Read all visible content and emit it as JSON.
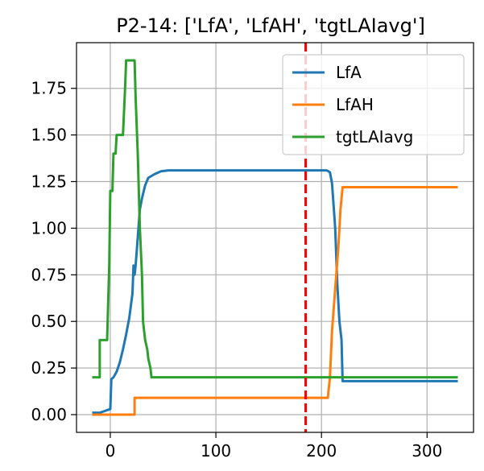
{
  "chart_data": {
    "type": "line",
    "title": "P2-14: ['LfA', 'LfAH', 'tgtLAIavg']",
    "xlabel": "",
    "ylabel": "",
    "xlim": [
      -32,
      344
    ],
    "ylim": [
      -0.095,
      1.995
    ],
    "xticks": [
      0,
      100,
      200,
      300
    ],
    "xtick_labels": [
      "0",
      "100",
      "200",
      "300"
    ],
    "yticks": [
      0.0,
      0.25,
      0.5,
      0.75,
      1.0,
      1.25,
      1.5,
      1.75
    ],
    "ytick_labels": [
      "0.00",
      "0.25",
      "0.50",
      "0.75",
      "1.00",
      "1.25",
      "1.50",
      "1.75"
    ],
    "grid": true,
    "legend_position": "top-right",
    "vline": {
      "x": 185,
      "color": "#ff0000",
      "style": "dashed"
    },
    "series": [
      {
        "name": "LfA",
        "color": "#1f77b4",
        "points": [
          [
            -16,
            0.01
          ],
          [
            -10,
            0.01
          ],
          [
            -5,
            0.02
          ],
          [
            0,
            0.03
          ],
          [
            1,
            0.19
          ],
          [
            3,
            0.2
          ],
          [
            6,
            0.23
          ],
          [
            9,
            0.28
          ],
          [
            12,
            0.35
          ],
          [
            15,
            0.43
          ],
          [
            18,
            0.52
          ],
          [
            21,
            0.65
          ],
          [
            22,
            0.8
          ],
          [
            23,
            0.75
          ],
          [
            24,
            0.8
          ],
          [
            26,
            0.95
          ],
          [
            28,
            1.1
          ],
          [
            30,
            1.16
          ],
          [
            33,
            1.23
          ],
          [
            36,
            1.27
          ],
          [
            42,
            1.29
          ],
          [
            48,
            1.305
          ],
          [
            55,
            1.31
          ],
          [
            100,
            1.31
          ],
          [
            150,
            1.31
          ],
          [
            205,
            1.31
          ],
          [
            208,
            1.3
          ],
          [
            210,
            1.24
          ],
          [
            213,
            1.0
          ],
          [
            215,
            0.7
          ],
          [
            217,
            0.5
          ],
          [
            219,
            0.4
          ],
          [
            220,
            0.18
          ],
          [
            260,
            0.18
          ],
          [
            300,
            0.18
          ],
          [
            328,
            0.18
          ]
        ]
      },
      {
        "name": "LfAH",
        "color": "#ff7f0e",
        "points": [
          [
            -16,
            0.0
          ],
          [
            0,
            0.0
          ],
          [
            23,
            0.0
          ],
          [
            23,
            0.09
          ],
          [
            100,
            0.09
          ],
          [
            150,
            0.09
          ],
          [
            206,
            0.09
          ],
          [
            208,
            0.2
          ],
          [
            210,
            0.45
          ],
          [
            212,
            0.6
          ],
          [
            214,
            0.75
          ],
          [
            216,
            0.9
          ],
          [
            218,
            1.1
          ],
          [
            220,
            1.22
          ],
          [
            260,
            1.22
          ],
          [
            300,
            1.22
          ],
          [
            328,
            1.22
          ]
        ]
      },
      {
        "name": "tgtLAIavg",
        "color": "#2ca02c",
        "points": [
          [
            -16,
            0.2
          ],
          [
            -10,
            0.2
          ],
          [
            -10,
            0.4
          ],
          [
            -3,
            0.4
          ],
          [
            -1,
            0.8
          ],
          [
            0,
            1.2
          ],
          [
            2,
            1.2
          ],
          [
            3,
            1.4
          ],
          [
            5,
            1.4
          ],
          [
            6,
            1.5
          ],
          [
            12,
            1.5
          ],
          [
            14,
            1.75
          ],
          [
            15,
            1.9
          ],
          [
            23,
            1.9
          ],
          [
            24,
            1.7
          ],
          [
            26,
            1.4
          ],
          [
            28,
            1.0
          ],
          [
            30,
            0.75
          ],
          [
            31,
            0.5
          ],
          [
            33,
            0.4
          ],
          [
            35,
            0.35
          ],
          [
            36,
            0.3
          ],
          [
            38,
            0.25
          ],
          [
            39,
            0.2
          ],
          [
            100,
            0.2
          ],
          [
            200,
            0.2
          ],
          [
            300,
            0.2
          ],
          [
            328,
            0.2
          ]
        ]
      }
    ]
  }
}
